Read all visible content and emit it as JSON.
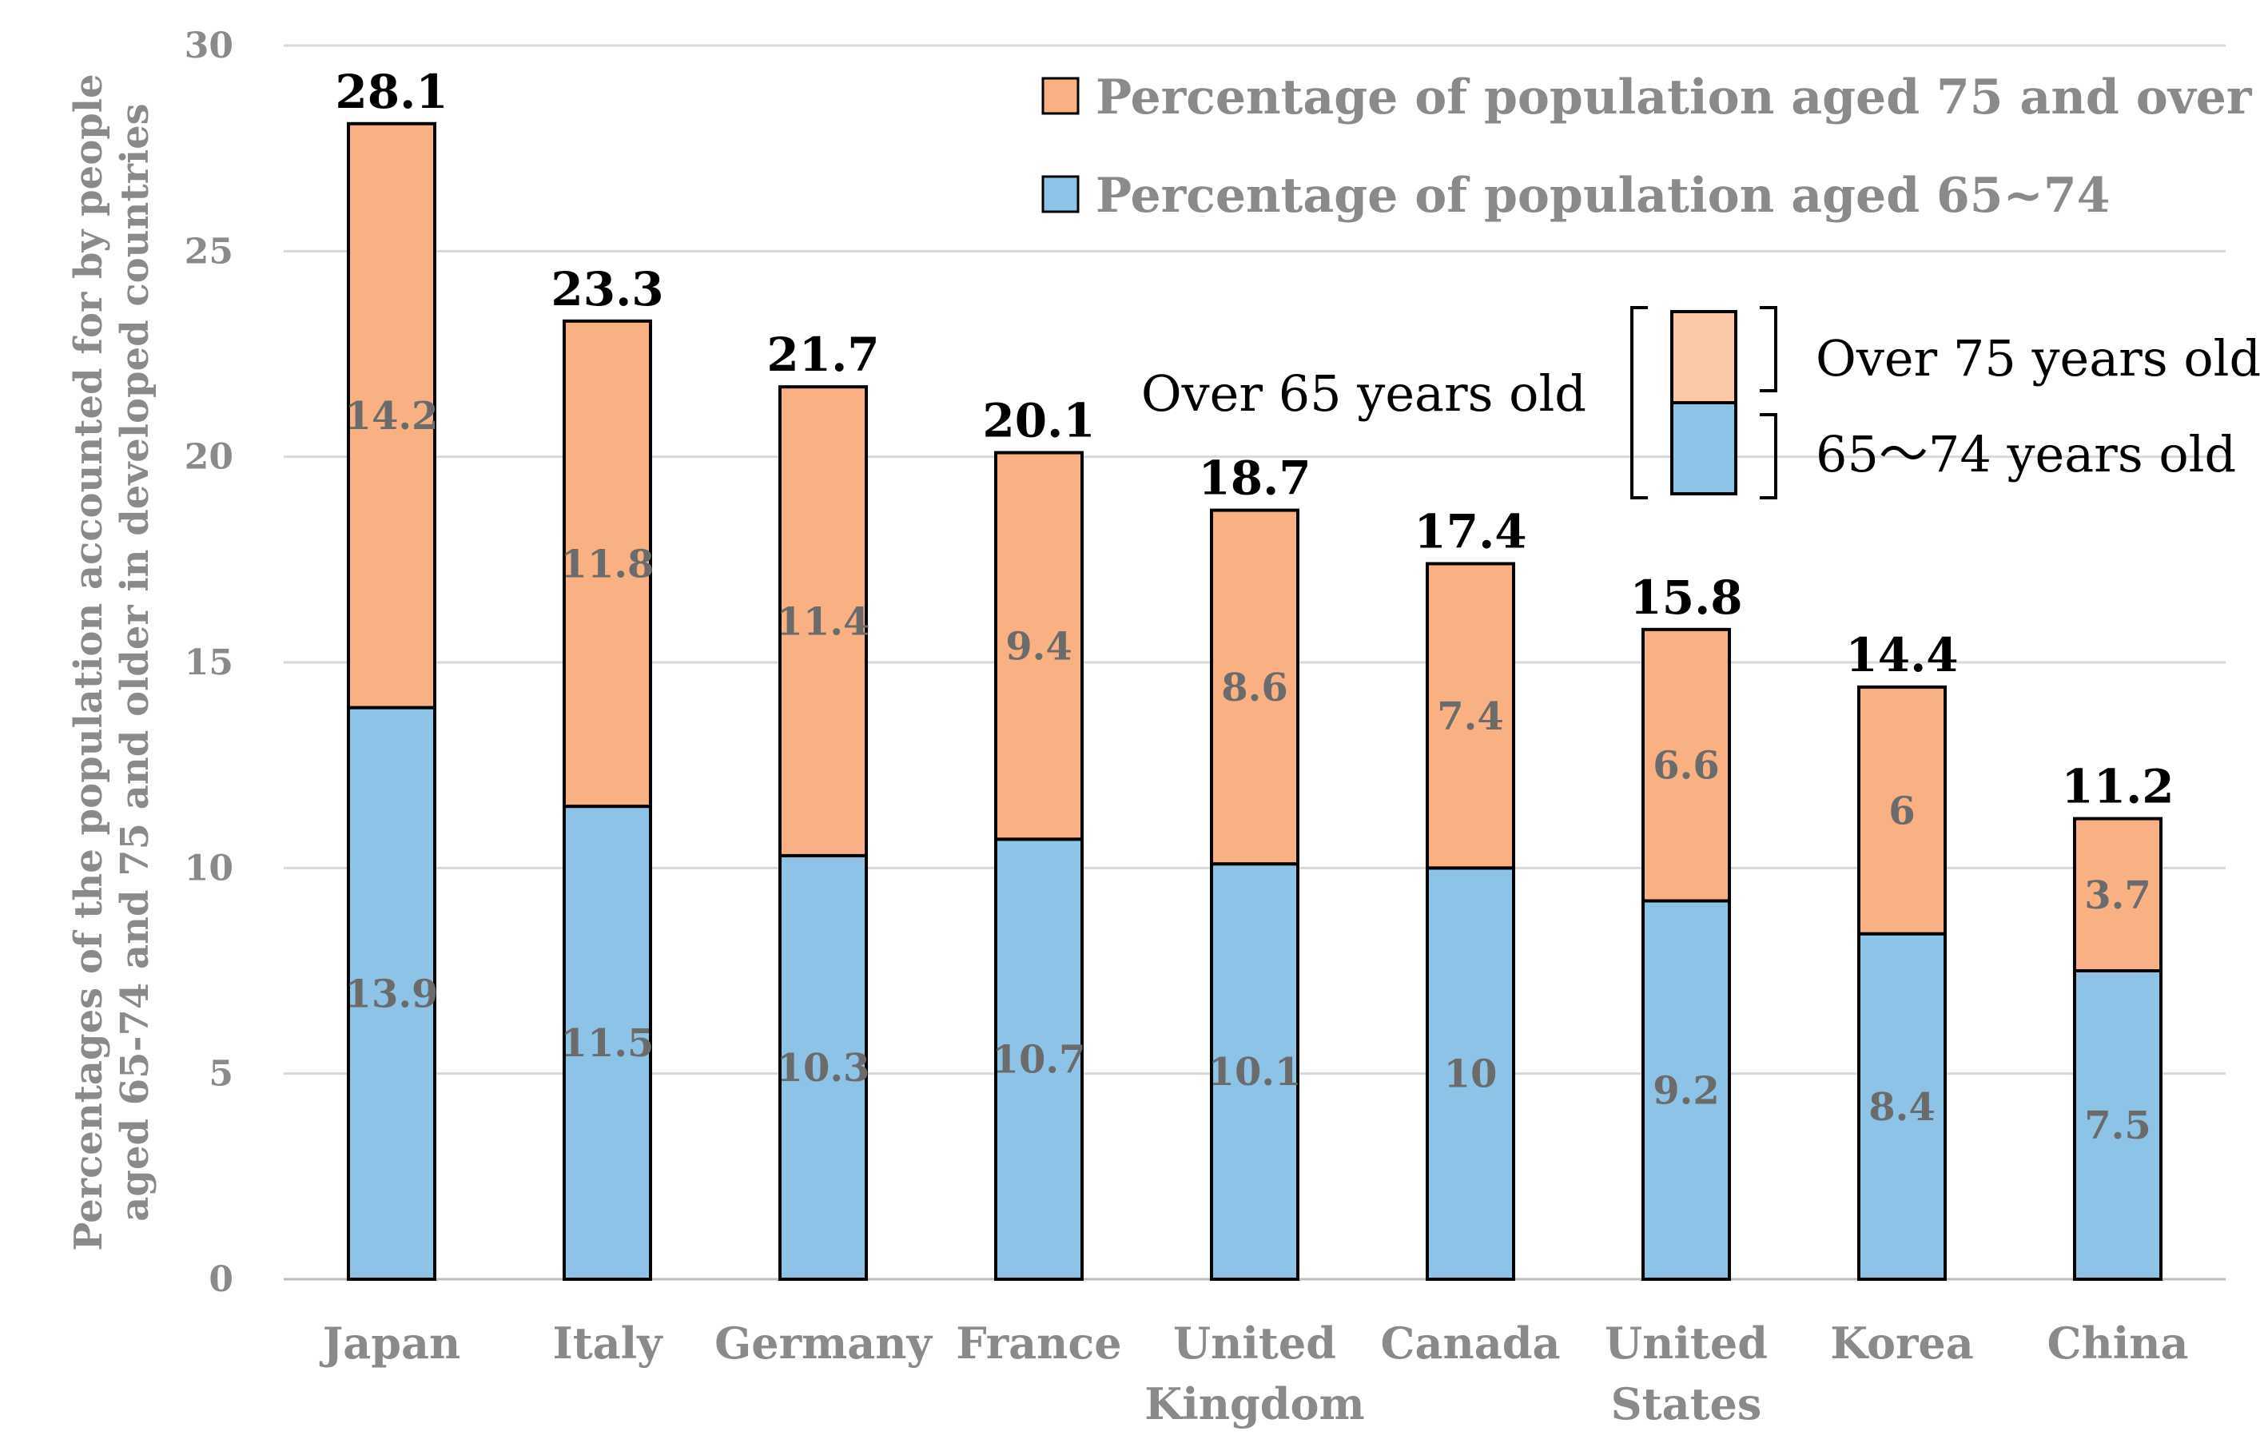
{
  "chart_data": {
    "type": "bar",
    "stacked": true,
    "title": "",
    "categories": [
      [
        "Japan"
      ],
      [
        "Italy"
      ],
      [
        "Germany"
      ],
      [
        "France"
      ],
      [
        "United",
        "Kingdom"
      ],
      [
        "Canada"
      ],
      [
        "United",
        "States"
      ],
      [
        "Korea"
      ],
      [
        "China"
      ]
    ],
    "series": [
      {
        "name": "Percentage of population aged 65~74",
        "color": "#8dc3e6",
        "values": [
          13.9,
          11.5,
          10.3,
          10.7,
          10.1,
          10,
          9.2,
          8.4,
          7.5
        ],
        "labels": [
          "13.9",
          "11.5",
          "10.3",
          "10.7",
          "10.1",
          "10",
          "9.2",
          "8.4",
          "7.5"
        ]
      },
      {
        "name": "Percentage of population aged 75 and over",
        "color": "#f9b184",
        "values": [
          14.2,
          11.8,
          11.4,
          9.4,
          8.6,
          7.4,
          6.6,
          6,
          3.7
        ],
        "labels": [
          "14.2",
          "11.8",
          "11.4",
          "9.4",
          "8.6",
          "7.4",
          "6.6",
          "6",
          "3.7"
        ]
      }
    ],
    "totals": [
      28.1,
      23.3,
      21.7,
      20.1,
      18.7,
      17.4,
      15.8,
      14.4,
      11.2
    ],
    "total_labels": [
      "28.1",
      "23.3",
      "21.7",
      "20.1",
      "18.7",
      "17.4",
      "15.8",
      "14.4",
      "11.2"
    ],
    "xlabel": "",
    "ylabel": [
      "Percentages of the population accounted for by people",
      "aged 65-74 and 75 and older in developed countries"
    ],
    "ylim": [
      0,
      30
    ],
    "yticks": [
      0,
      5,
      10,
      15,
      20,
      25,
      30
    ],
    "grid": true,
    "legend": {
      "position": "top-right",
      "entries": [
        {
          "label": "Percentage of population aged 75 and over",
          "color": "#f9b184"
        },
        {
          "label": "Percentage of population aged 65~74",
          "color": "#8dc3e6"
        }
      ]
    },
    "annotation": {
      "left_label": "Over 65 years old",
      "top_label": "Over 75 years old",
      "bottom_label": "65～74 years old",
      "top_color": "#fcc9a8",
      "bottom_color": "#8dc3e6"
    }
  }
}
